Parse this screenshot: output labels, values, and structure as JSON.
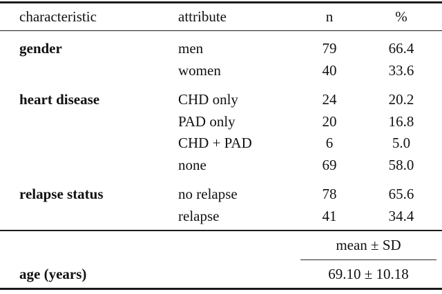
{
  "table": {
    "header": {
      "characteristic": "characteristic",
      "attribute": "attribute",
      "n": "n",
      "percent": "%"
    },
    "sections": [
      {
        "characteristic": "gender",
        "rows": [
          {
            "attribute": "men",
            "n": "79",
            "percent": "66.4"
          },
          {
            "attribute": "women",
            "n": "40",
            "percent": "33.6"
          }
        ]
      },
      {
        "characteristic": "heart disease",
        "rows": [
          {
            "attribute": "CHD only",
            "n": "24",
            "percent": "20.2"
          },
          {
            "attribute": "PAD only",
            "n": "20",
            "percent": "16.8"
          },
          {
            "attribute": "CHD + PAD",
            "n": "6",
            "percent": "5.0"
          },
          {
            "attribute": "none",
            "n": "69",
            "percent": "58.0"
          }
        ]
      },
      {
        "characteristic": "relapse status",
        "rows": [
          {
            "attribute": "no relapse",
            "n": "78",
            "percent": "65.6"
          },
          {
            "attribute": "relapse",
            "n": "41",
            "percent": "34.4"
          }
        ]
      }
    ],
    "summary": {
      "header": "mean ± SD",
      "row_label": "age (years)",
      "value": "69.10 ± 10.18"
    },
    "colors": {
      "background": "#ffffff",
      "text": "#111111",
      "rule": "#1a1a1a"
    }
  }
}
